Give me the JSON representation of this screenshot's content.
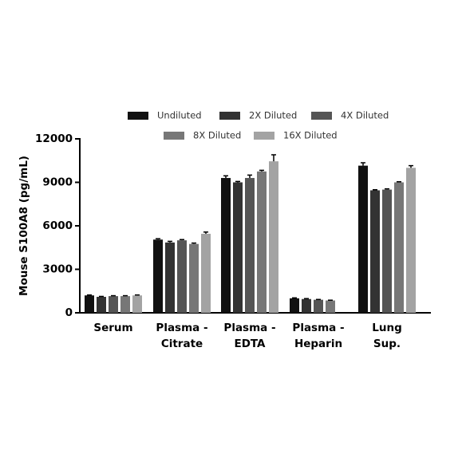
{
  "chart_data": {
    "type": "bar",
    "y_label": "Mouse S100A8 (pg/mL)",
    "categories": [
      [
        "Serum"
      ],
      [
        "Plasma -",
        "Citrate"
      ],
      [
        "Plasma -",
        "EDTA"
      ],
      [
        "Plasma -",
        "Heparin"
      ],
      [
        "Lung",
        "Sup."
      ]
    ],
    "series": [
      {
        "name": "Undiluted",
        "color": "#111111",
        "values": [
          1200,
          5050,
          9300,
          1000,
          10150
        ],
        "errors": [
          30,
          60,
          150,
          30,
          200
        ]
      },
      {
        "name": "2X Diluted",
        "color": "#333333",
        "values": [
          1100,
          4850,
          9000,
          950,
          8450
        ],
        "errors": [
          30,
          80,
          60,
          30,
          40
        ]
      },
      {
        "name": "4X Diluted",
        "color": "#555555",
        "values": [
          1150,
          5000,
          9300,
          900,
          8500
        ],
        "errors": [
          30,
          50,
          200,
          20,
          50
        ]
      },
      {
        "name": "8X Diluted",
        "color": "#777777",
        "values": [
          1150,
          4750,
          9750,
          850,
          9000
        ],
        "errors": [
          30,
          60,
          80,
          20,
          40
        ]
      },
      {
        "name": "16X Diluted",
        "color": "#a3a3a3",
        "values": [
          1200,
          5450,
          10450,
          null,
          10000
        ],
        "errors": [
          30,
          120,
          450,
          null,
          150
        ]
      }
    ],
    "ylim": [
      0,
      12000
    ],
    "yticks": [
      0,
      3000,
      6000,
      9000,
      12000
    ]
  }
}
